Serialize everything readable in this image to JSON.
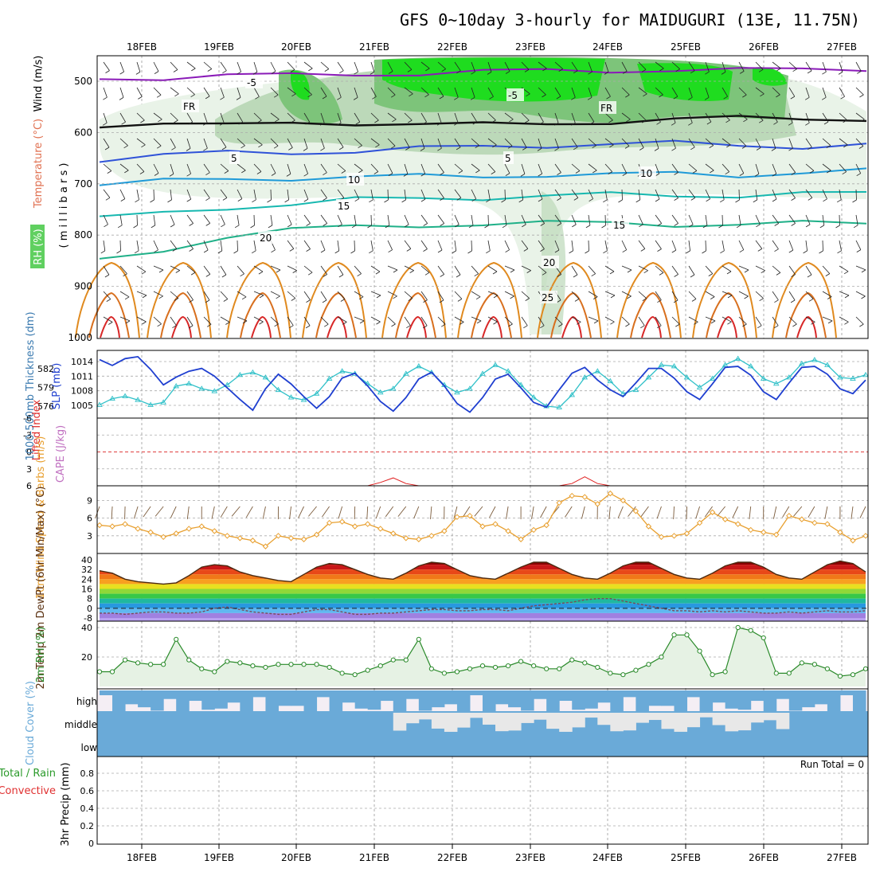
{
  "title": "GFS 0~10day 3-hourly for MAIDUGURI (13E, 11.75N)",
  "dates": [
    "18FEB",
    "19FEB",
    "20FEB",
    "21FEB",
    "22FEB",
    "23FEB",
    "24FEB",
    "25FEB",
    "26FEB",
    "27FEB"
  ],
  "colors": {
    "rh_light": "#e9f3e8",
    "rh_mid": "#bcd9b9",
    "rh_dark": "#7dc47a",
    "rh_bright": "#1fdc1f",
    "temp_purple": "#8a1ab8",
    "temp_blue": "#2f52d8",
    "temp_lightblue": "#1f9ad8",
    "temp_teal": "#17b8b0",
    "temp_green": "#1fb088",
    "temp_orange": "#e08a1f",
    "temp_red": "#d82828",
    "slp": "#1f3fd0",
    "thickness": "#2fc0c8",
    "wind10m": "#e8a030",
    "rh2m": "#2a8a2a",
    "cloud": "#6aaad8"
  },
  "chart_data": [
    {
      "type": "heatmap",
      "panel": "pressure_levels",
      "ylabel_parts": [
        "Wind (m/s)",
        "Temperature (°C)",
        "RH (%)"
      ],
      "ylabel_units": "( m i l l i b a r s )",
      "yticks": [
        "500",
        "600",
        "700",
        "800",
        "900",
        "1000"
      ],
      "contour_labels": [
        "-5",
        "-5",
        "FR",
        "FR",
        "5",
        "5",
        "10",
        "10",
        "15",
        "15",
        "20",
        "20",
        "25"
      ],
      "series": [
        {
          "name": "-5",
          "values": [
            496,
            492,
            488,
            490,
            486,
            484,
            482,
            480,
            478,
            478,
            480,
            476,
            474
          ]
        },
        {
          "name": "FR",
          "values": [
            585,
            580,
            588,
            582,
            580,
            584,
            586,
            582,
            578,
            576,
            572,
            570,
            574
          ]
        },
        {
          "name": "5",
          "values": [
            652,
            645,
            640,
            638,
            636,
            632,
            628,
            624,
            622,
            622,
            625,
            626,
            624
          ]
        },
        {
          "name": "10",
          "values": [
            702,
            696,
            690,
            688,
            688,
            686,
            684,
            682,
            684,
            680,
            682,
            678,
            676
          ]
        },
        {
          "name": "15",
          "values": [
            768,
            758,
            745,
            740,
            732,
            728,
            726,
            724,
            722,
            722,
            722,
            720,
            720
          ]
        },
        {
          "name": "20",
          "values": [
            852,
            830,
            800,
            790,
            785,
            780,
            778,
            778,
            776,
            778,
            780,
            778,
            776
          ]
        }
      ]
    },
    {
      "type": "line",
      "panel": "slp_thickness",
      "ylabel": "SLP (mb)",
      "ylabel2": "1000-500mb Thickness (dm)",
      "yticks_slp": [
        "1014",
        "1011",
        "1008",
        "1005"
      ],
      "yticks_thk": [
        "582",
        "579",
        "576"
      ],
      "series": [
        {
          "name": "SLP (mb)",
          "values": [
            1014.4,
            1013.2,
            1014.6,
            1015,
            1012.4,
            1009.2,
            1010.8,
            1012.0,
            1012.6,
            1011.0,
            1008.6,
            1006.2,
            1004.0,
            1008.4,
            1011.4,
            1009.4,
            1006.8,
            1004.4,
            1006.8,
            1010.6,
            1011.6,
            1009.0,
            1005.8,
            1003.8,
            1006.6,
            1010.4,
            1011.8,
            1009.0,
            1005.4,
            1003.6,
            1006.6,
            1010.4,
            1011.4,
            1008.6,
            1005.6,
            1004.6,
            1008.2,
            1011.6,
            1012.8,
            1010.2,
            1008.2,
            1006.8,
            1009.6,
            1012.6,
            1012.6,
            1010.6,
            1007.8,
            1006.2,
            1009.4,
            1012.8,
            1013.0,
            1011.2,
            1007.8,
            1006.2,
            1009.6,
            1012.8,
            1013.0,
            1011.4,
            1008.4,
            1007.4,
            1010.2
          ]
        },
        {
          "name": "1000-500mb Thickness (dm)",
          "values": [
            576.2,
            577.2,
            577.6,
            577.0,
            576.2,
            576.6,
            579.2,
            579.6,
            578.8,
            578.4,
            579.4,
            581.0,
            581.4,
            580.6,
            578.6,
            577.4,
            577.0,
            578.0,
            580.4,
            581.6,
            581.2,
            579.6,
            578.2,
            578.8,
            581.2,
            582.4,
            581.4,
            579.4,
            578.2,
            578.8,
            581.2,
            582.6,
            581.6,
            579.4,
            577.4,
            576.0,
            575.8,
            577.8,
            580.6,
            581.6,
            580.0,
            578.0,
            578.6,
            580.6,
            582.6,
            582.4,
            580.6,
            579.0,
            580.4,
            582.6,
            583.6,
            582.4,
            580.4,
            579.6,
            580.6,
            582.8,
            583.4,
            582.6,
            580.6,
            580.4,
            581.0
          ]
        }
      ]
    },
    {
      "type": "line",
      "panel": "cape_li",
      "ylabel": "Lifted Index",
      "ylabel2": "CAPE (J/kg)",
      "yticks": [
        "-6",
        "-3",
        "0",
        "3",
        "6"
      ],
      "series": [
        {
          "name": "Lifted Index",
          "values": [
            6,
            6,
            6,
            6,
            6,
            6,
            6,
            6,
            6,
            6,
            6,
            6,
            6,
            6,
            6,
            6,
            6,
            6,
            6,
            6,
            6,
            6,
            5.4,
            4.6,
            5.6,
            6,
            6,
            6,
            6,
            6,
            6,
            6,
            6,
            6,
            6,
            6,
            6,
            5.6,
            4.4,
            5.6,
            6,
            6,
            6,
            6,
            6,
            6,
            6,
            6,
            6,
            6,
            6,
            6,
            6,
            6,
            6,
            6,
            6,
            6,
            6,
            6,
            6
          ]
        }
      ]
    },
    {
      "type": "line",
      "panel": "wind10m",
      "ylabel": "10m Wind Speed & Barbs (m/s)",
      "yticks": [
        "9",
        "6",
        "3"
      ],
      "series": [
        {
          "name": "10m Wind Speed",
          "values": [
            4.8,
            4.6,
            5.0,
            4.2,
            3.6,
            2.8,
            3.4,
            4.2,
            4.6,
            3.8,
            3.0,
            2.6,
            2.2,
            1.2,
            3.0,
            2.6,
            2.4,
            3.2,
            5.2,
            5.4,
            4.6,
            5.0,
            4.2,
            3.4,
            2.6,
            2.4,
            3.0,
            3.8,
            6.2,
            6.4,
            4.6,
            5.0,
            3.8,
            2.4,
            4.0,
            4.8,
            8.6,
            9.8,
            9.6,
            8.4,
            10.2,
            9.0,
            7.2,
            4.6,
            2.8,
            3.0,
            3.4,
            5.2,
            7.0,
            5.8,
            5.0,
            4.0,
            3.6,
            3.2,
            6.4,
            5.8,
            5.2,
            5.0,
            3.6,
            2.2,
            3.0
          ]
        }
      ]
    },
    {
      "type": "area",
      "panel": "temp2m",
      "ylabel": "2m Temp 2m DewPt (6hr Min/Max) (°C)",
      "yticks": [
        "40",
        "32",
        "24",
        "16",
        "8",
        "0",
        "-8"
      ],
      "series": [
        {
          "name": "2m Temp",
          "values": [
            31,
            29,
            24,
            22,
            21,
            20,
            21,
            27,
            34,
            36,
            35,
            30,
            27,
            25,
            23,
            22,
            28,
            34,
            37,
            36,
            32,
            28,
            25,
            24,
            29,
            35,
            38,
            37,
            32,
            27,
            25,
            24,
            29,
            34,
            38,
            38,
            33,
            28,
            25,
            24,
            29,
            35,
            38,
            38,
            33,
            28,
            25,
            24,
            29,
            35,
            38,
            38,
            34,
            28,
            25,
            24,
            30,
            36,
            39,
            37,
            30
          ]
        },
        {
          "name": "2m DewPt",
          "values": [
            -4,
            -4,
            -5,
            -4,
            -3,
            -3,
            -4,
            -4,
            -3,
            0,
            1,
            -1,
            -3,
            -4,
            -5,
            -5,
            -3,
            -1,
            -1,
            -3,
            -5,
            -5,
            -4,
            -4,
            -3,
            -2,
            -1,
            -1,
            -2,
            -2,
            -1,
            -1,
            -2,
            0,
            2,
            3,
            4,
            5,
            7,
            8,
            8,
            6,
            4,
            2,
            0,
            -2,
            -2,
            -3,
            -2,
            -3,
            -2,
            -3,
            -4,
            -4,
            -3,
            -4,
            -3,
            -2,
            -3,
            -3,
            -2
          ]
        }
      ]
    },
    {
      "type": "area",
      "panel": "rh2m",
      "ylabel": "2m RH (%)",
      "yticks": [
        "40",
        "20"
      ],
      "series": [
        {
          "name": "2m RH",
          "values": [
            10,
            10,
            18,
            16,
            15,
            15,
            32,
            18,
            12,
            10,
            17,
            16,
            14,
            13,
            15,
            15,
            15,
            15,
            13,
            9,
            8,
            11,
            14,
            18,
            18,
            32,
            12,
            9,
            10,
            12,
            14,
            13,
            14,
            17,
            14,
            12,
            12,
            18,
            16,
            13,
            9,
            8,
            11,
            15,
            20,
            35,
            35,
            24,
            8,
            10,
            40,
            38,
            33,
            9,
            9,
            16,
            15,
            12,
            7,
            8,
            12
          ]
        }
      ]
    },
    {
      "type": "heatmap",
      "panel": "cloud",
      "ylabel": "Cloud Cover (%)",
      "yticks": [
        "high",
        "middle",
        "low"
      ]
    },
    {
      "type": "bar",
      "panel": "precip",
      "ylabel": "3hr Precip (mm)",
      "ylabel_parts": [
        "Total / Rain",
        "Convective"
      ],
      "annotation": "Run Total = 0",
      "yticks": [
        "0.8",
        "0.6",
        "0.4",
        "0.2",
        "0"
      ],
      "ylim": [
        0,
        0.9
      ],
      "values": []
    }
  ]
}
